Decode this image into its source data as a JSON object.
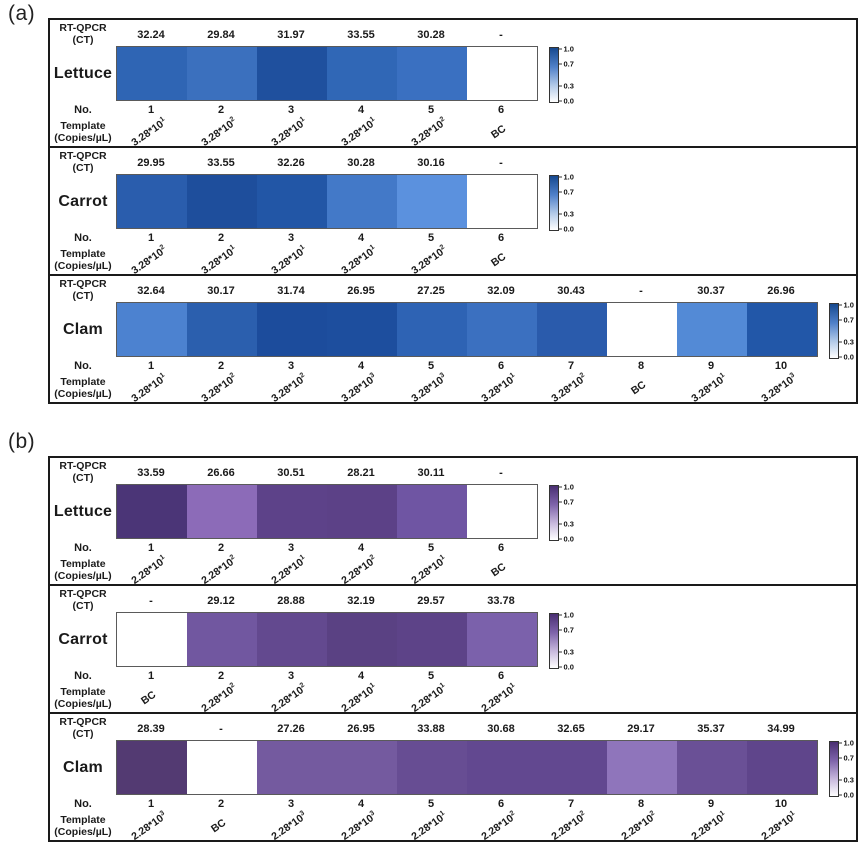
{
  "labels": {
    "ct_line1": "RT-QPCR",
    "ct_line2": "(CT)",
    "no": "No.",
    "template_line1": "Template",
    "template_line2": "(Copies/µL)"
  },
  "chart_data": {
    "type": "heatmap",
    "description": "RT-QPCR CT values and template copy numbers visualized as normalized color intensity per sample",
    "colorbar": {
      "range": [
        0,
        1
      ],
      "ticks": [
        "1.0",
        "0.7",
        "0.3",
        "0.0"
      ],
      "tick_positions_pct": [
        0,
        30,
        70,
        100
      ]
    },
    "panels": [
      {
        "id": "a",
        "label": "(a)",
        "colormap": "blue",
        "colorbar_gradient": [
          "#17498f",
          "#4f80c9",
          "#b4cbe9",
          "#ffffff"
        ],
        "rows": [
          {
            "species": "Lettuce",
            "cells": [
              {
                "no": "1",
                "ct": "32.24",
                "template": "3.28*10^1",
                "color": "#2F65B4"
              },
              {
                "no": "2",
                "ct": "29.84",
                "template": "3.28*10^2",
                "color": "#3B70BE"
              },
              {
                "no": "3",
                "ct": "31.97",
                "template": "3.28*10^1",
                "color": "#1F509E"
              },
              {
                "no": "4",
                "ct": "33.55",
                "template": "3.28*10^1",
                "color": "#3067B6"
              },
              {
                "no": "5",
                "ct": "30.28",
                "template": "3.28*10^2",
                "color": "#3A70C1"
              },
              {
                "no": "6",
                "ct": "-",
                "template": "BC",
                "color": "#FFFFFF"
              }
            ]
          },
          {
            "species": "Carrot",
            "cells": [
              {
                "no": "1",
                "ct": "29.95",
                "template": "3.28*10^2",
                "color": "#2A5DAD"
              },
              {
                "no": "2",
                "ct": "33.55",
                "template": "3.28*10^1",
                "color": "#1E4E9C"
              },
              {
                "no": "3",
                "ct": "32.26",
                "template": "3.28*10^1",
                "color": "#2256A6"
              },
              {
                "no": "4",
                "ct": "30.28",
                "template": "3.28*10^1",
                "color": "#4379C8"
              },
              {
                "no": "5",
                "ct": "30.16",
                "template": "3.28*10^2",
                "color": "#5B91DE"
              },
              {
                "no": "6",
                "ct": "-",
                "template": "BC",
                "color": "#FFFFFF"
              }
            ]
          },
          {
            "species": "Clam",
            "cells": [
              {
                "no": "1",
                "ct": "32.64",
                "template": "3.28*10^1",
                "color": "#4C82D0"
              },
              {
                "no": "2",
                "ct": "30.17",
                "template": "3.28*10^2",
                "color": "#2B5FAE"
              },
              {
                "no": "3",
                "ct": "31.74",
                "template": "3.28*10^2",
                "color": "#1C4C9C"
              },
              {
                "no": "4",
                "ct": "26.95",
                "template": "3.28*10^3",
                "color": "#1D4E9E"
              },
              {
                "no": "5",
                "ct": "27.25",
                "template": "3.28*10^3",
                "color": "#2E63B4"
              },
              {
                "no": "6",
                "ct": "32.09",
                "template": "3.28*10^1",
                "color": "#3B70C0"
              },
              {
                "no": "7",
                "ct": "30.43",
                "template": "3.28*10^2",
                "color": "#2A5BAC"
              },
              {
                "no": "8",
                "ct": "-",
                "template": "BC",
                "color": "#FFFFFF"
              },
              {
                "no": "9",
                "ct": "30.37",
                "template": "3.28*10^1",
                "color": "#538AD6"
              },
              {
                "no": "10",
                "ct": "26.96",
                "template": "3.28*10^3",
                "color": "#2257A8"
              }
            ]
          }
        ]
      },
      {
        "id": "b",
        "label": "(b)",
        "colormap": "purple",
        "colorbar_gradient": [
          "#4a2f73",
          "#7f64ab",
          "#cabbdf",
          "#ffffff"
        ],
        "rows": [
          {
            "species": "Lettuce",
            "cells": [
              {
                "no": "1",
                "ct": "33.59",
                "template": "2.28*10^1",
                "color": "#4B3577"
              },
              {
                "no": "2",
                "ct": "26.66",
                "template": "2.28*10^2",
                "color": "#8C6BB8"
              },
              {
                "no": "3",
                "ct": "30.51",
                "template": "2.28*10^1",
                "color": "#5D4289"
              },
              {
                "no": "4",
                "ct": "28.21",
                "template": "2.28*10^2",
                "color": "#5C4187"
              },
              {
                "no": "5",
                "ct": "30.11",
                "template": "2.28*10^1",
                "color": "#6F55A3"
              },
              {
                "no": "6",
                "ct": "-",
                "template": "BC",
                "color": "#FFFFFF"
              }
            ]
          },
          {
            "species": "Carrot",
            "cells": [
              {
                "no": "1",
                "ct": "-",
                "template": "BC",
                "color": "#FFFFFF"
              },
              {
                "no": "2",
                "ct": "29.12",
                "template": "2.28*10^2",
                "color": "#7157A0"
              },
              {
                "no": "3",
                "ct": "28.88",
                "template": "2.28*10^2",
                "color": "#63498F"
              },
              {
                "no": "4",
                "ct": "32.19",
                "template": "2.28*10^1",
                "color": "#5A4183"
              },
              {
                "no": "5",
                "ct": "29.57",
                "template": "2.28*10^1",
                "color": "#5D4388"
              },
              {
                "no": "6",
                "ct": "33.78",
                "template": "2.28*10^1",
                "color": "#7B61AB"
              }
            ]
          },
          {
            "species": "Clam",
            "cells": [
              {
                "no": "1",
                "ct": "28.39",
                "template": "2.28*10^3",
                "color": "#533A72"
              },
              {
                "no": "2",
                "ct": "-",
                "template": "BC",
                "color": "#FFFFFF"
              },
              {
                "no": "3",
                "ct": "27.26",
                "template": "2.28*10^3",
                "color": "#745A9F"
              },
              {
                "no": "4",
                "ct": "26.95",
                "template": "2.28*10^3",
                "color": "#745A9F"
              },
              {
                "no": "5",
                "ct": "33.88",
                "template": "2.28*10^1",
                "color": "#674D93"
              },
              {
                "no": "6",
                "ct": "30.68",
                "template": "2.28*10^2",
                "color": "#624890"
              },
              {
                "no": "7",
                "ct": "32.65",
                "template": "2.28*10^2",
                "color": "#624890"
              },
              {
                "no": "8",
                "ct": "29.17",
                "template": "2.28*10^2",
                "color": "#8F75BB"
              },
              {
                "no": "9",
                "ct": "35.37",
                "template": "2.28*10^1",
                "color": "#6A5096"
              },
              {
                "no": "10",
                "ct": "34.99",
                "template": "2.28*10^1",
                "color": "#5F458B"
              }
            ]
          }
        ]
      }
    ]
  }
}
